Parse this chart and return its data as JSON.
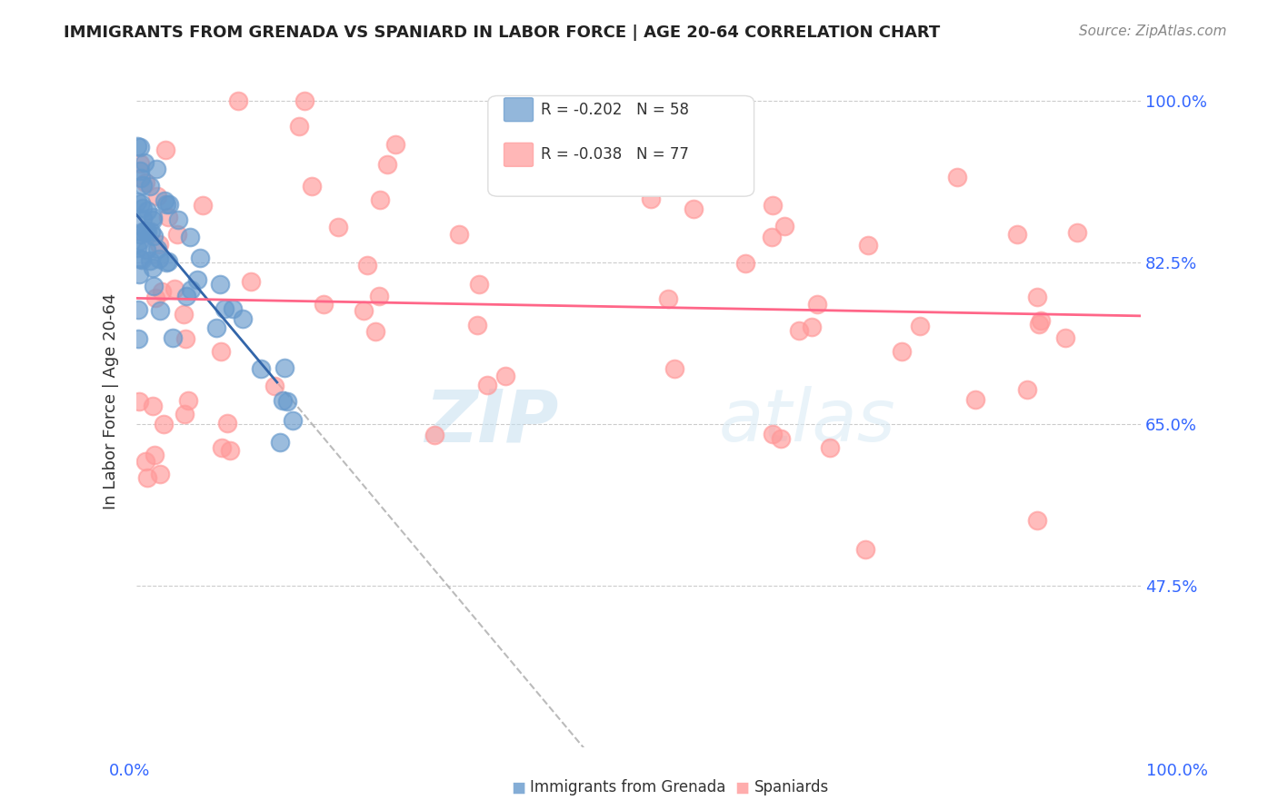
{
  "title": "IMMIGRANTS FROM GRENADA VS SPANIARD IN LABOR FORCE | AGE 20-64 CORRELATION CHART",
  "source": "Source: ZipAtlas.com",
  "ylabel": "In Labor Force | Age 20-64",
  "ytick_labels": [
    "100.0%",
    "82.5%",
    "65.0%",
    "47.5%"
  ],
  "ytick_values": [
    1.0,
    0.825,
    0.65,
    0.475
  ],
  "xlim": [
    0.0,
    1.0
  ],
  "ylim": [
    0.3,
    1.05
  ],
  "legend_r1": "R = -0.202",
  "legend_n1": "N = 58",
  "legend_r2": "R = -0.038",
  "legend_n2": "N = 77",
  "color_blue": "#6699CC",
  "color_pink": "#FF9999",
  "color_line_blue": "#3366AA",
  "color_line_pink": "#FF6688",
  "color_dashed": "#AAAAAA",
  "watermark_zip": "ZIP",
  "watermark_atlas": "atlas"
}
